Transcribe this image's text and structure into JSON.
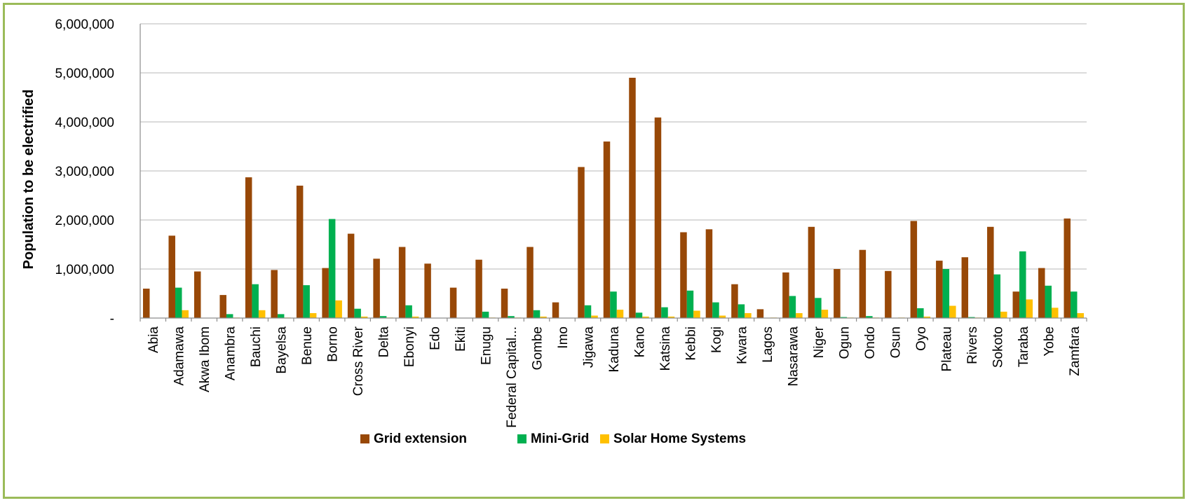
{
  "chart_data": {
    "type": "bar",
    "title": "",
    "xlabel": "",
    "ylabel": "Population to be electrified",
    "ylim": [
      0,
      6000000
    ],
    "yticks": [
      {
        "value": 0,
        "label": "-"
      },
      {
        "value": 1000000,
        "label": "1,000,000"
      },
      {
        "value": 2000000,
        "label": "2,000,000"
      },
      {
        "value": 3000000,
        "label": "3,000,000"
      },
      {
        "value": 4000000,
        "label": "4,000,000"
      },
      {
        "value": 5000000,
        "label": "5,000,000"
      },
      {
        "value": 6000000,
        "label": "6,000,000"
      }
    ],
    "grid": true,
    "legend_position": "bottom",
    "categories": [
      "Abia",
      "Adamawa",
      "Akwa Ibom",
      "Anambra",
      "Bauchi",
      "Bayelsa",
      "Benue",
      "Borno",
      "Cross River",
      "Delta",
      "Ebonyi",
      "Edo",
      "Ekiti",
      "Enugu",
      "Federal Capital...",
      "Gombe",
      "Imo",
      "Jigawa",
      "Kaduna",
      "Kano",
      "Katsina",
      "Kebbi",
      "Kogi",
      "Kwara",
      "Lagos",
      "Nasarawa",
      "Niger",
      "Ogun",
      "Ondo",
      "Osun",
      "Oyo",
      "Plateau",
      "Rivers",
      "Sokoto",
      "Taraba",
      "Yobe",
      "Zamfara"
    ],
    "series": [
      {
        "name": "Grid extension",
        "color": "#984807",
        "values": [
          600000,
          1680000,
          950000,
          470000,
          2870000,
          980000,
          2700000,
          1020000,
          1720000,
          1210000,
          1450000,
          1110000,
          620000,
          1190000,
          600000,
          1450000,
          320000,
          3080000,
          3600000,
          4900000,
          4090000,
          1750000,
          1810000,
          690000,
          180000,
          930000,
          1860000,
          1000000,
          1390000,
          960000,
          1980000,
          1170000,
          1240000,
          1860000,
          540000,
          1020000,
          2030000
        ]
      },
      {
        "name": "Mini-Grid",
        "color": "#00b050",
        "values": [
          0,
          620000,
          0,
          80000,
          690000,
          80000,
          670000,
          2020000,
          190000,
          40000,
          260000,
          0,
          0,
          130000,
          40000,
          160000,
          0,
          260000,
          540000,
          110000,
          220000,
          560000,
          320000,
          280000,
          0,
          450000,
          410000,
          20000,
          40000,
          0,
          200000,
          1000000,
          20000,
          890000,
          1360000,
          660000,
          540000
        ]
      },
      {
        "name": "Solar Home Systems",
        "color": "#ffc000",
        "values": [
          0,
          160000,
          0,
          10000,
          160000,
          10000,
          100000,
          360000,
          30000,
          10000,
          30000,
          0,
          0,
          10000,
          10000,
          30000,
          0,
          50000,
          170000,
          30000,
          30000,
          150000,
          50000,
          100000,
          10000,
          100000,
          170000,
          10000,
          10000,
          10000,
          30000,
          250000,
          10000,
          130000,
          380000,
          210000,
          100000
        ]
      }
    ]
  }
}
